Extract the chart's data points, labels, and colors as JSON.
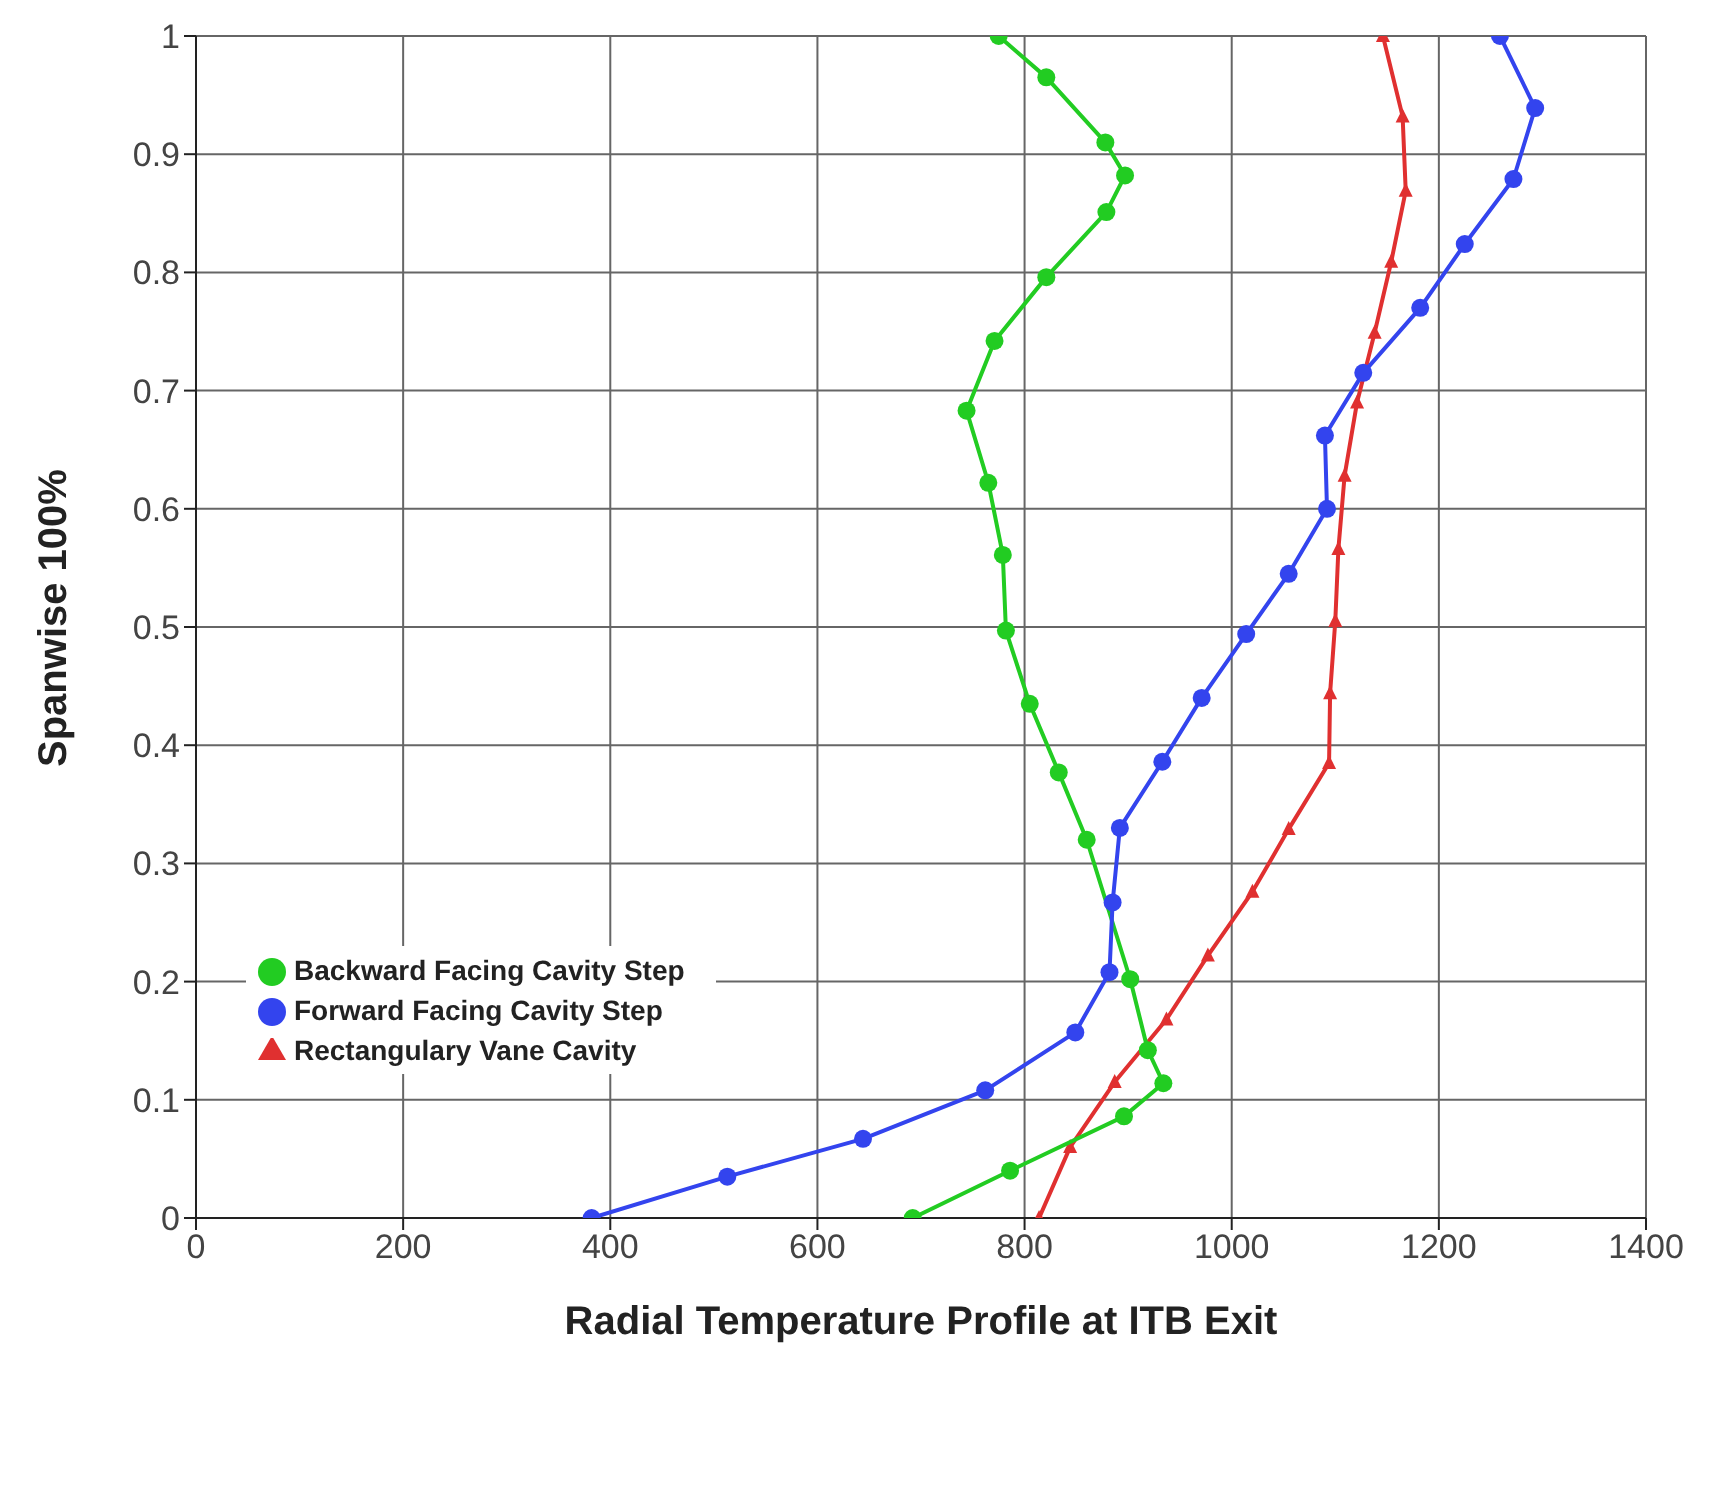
{
  "chart_data": {
    "type": "line",
    "xlabel": "Radial Temperature Profile at ITB Exit",
    "ylabel": "Spanwise 100%",
    "xlim": [
      0,
      1400
    ],
    "xticks": [
      0,
      200,
      400,
      600,
      800,
      1000,
      1200,
      1400
    ],
    "ylim": [
      0,
      1
    ],
    "yticks": [
      0,
      0.1,
      0.2,
      0.3,
      0.4,
      0.5,
      0.6,
      0.7,
      0.8,
      0.9,
      1
    ],
    "grid": true,
    "legend": "left",
    "line_style": "solid",
    "series": [
      {
        "name": "Rectangulary Vane Cavity",
        "color": "#e03030",
        "marker": "triangle",
        "x": [
          814,
          844,
          887,
          937,
          977,
          1020,
          1055,
          1094,
          1095,
          1100,
          1103,
          1109,
          1121,
          1138,
          1154,
          1168,
          1165,
          1146
        ],
        "values": [
          0,
          0.06,
          0.115,
          0.168,
          0.222,
          0.276,
          0.329,
          0.385,
          0.444,
          0.505,
          0.566,
          0.628,
          0.69,
          0.749,
          0.809,
          0.869,
          0.932,
          1
        ]
      },
      {
        "name": "Backward Facing Cavity Step",
        "color": "#22cc22",
        "marker": "circle",
        "x": [
          692,
          786,
          896,
          934,
          919,
          902,
          860,
          833,
          805,
          782,
          779,
          765,
          744,
          771,
          821,
          879,
          897,
          878,
          821,
          775
        ],
        "values": [
          0,
          0.04,
          0.086,
          0.114,
          0.142,
          0.202,
          0.32,
          0.377,
          0.435,
          0.497,
          0.561,
          0.622,
          0.683,
          0.742,
          0.796,
          0.851,
          0.882,
          0.91,
          0.965,
          1
        ]
      },
      {
        "name": "Forward Facing Cavity Step",
        "color": "#3344ee",
        "marker": "circle",
        "x": [
          382,
          513,
          644,
          762,
          849,
          882,
          885,
          892,
          933,
          971,
          1014,
          1055,
          1092,
          1090,
          1127,
          1182,
          1225,
          1272,
          1293,
          1259
        ],
        "values": [
          0,
          0.035,
          0.067,
          0.108,
          0.157,
          0.208,
          0.267,
          0.33,
          0.386,
          0.44,
          0.494,
          0.545,
          0.6,
          0.662,
          0.715,
          0.77,
          0.824,
          0.879,
          0.939,
          1
        ]
      }
    ]
  }
}
